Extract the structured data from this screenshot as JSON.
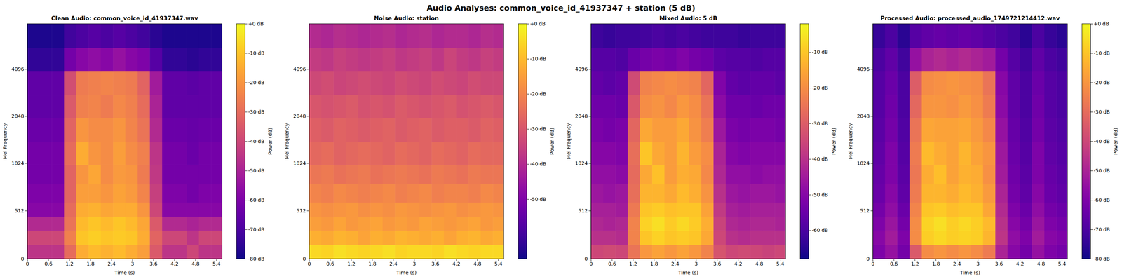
{
  "title": "Audio Analyses: common_voice_id_41937347 + station (5 dB)",
  "chart_data": [
    {
      "type": "heatmap",
      "title": "Clean Audio: common_voice_id_41937347.wav",
      "x_label": "Time (s)",
      "y_label": "Mel Frequency",
      "log": "y",
      "color": "plasma",
      "xlim": [
        0,
        5.56
      ],
      "xticks": [
        0,
        0.6,
        1.2,
        1.8,
        2.4,
        3,
        3.6,
        4.2,
        4.8,
        5.4
      ],
      "ylim": [
        0,
        8000
      ],
      "yticks": [
        0,
        512,
        1024,
        2048,
        4096
      ],
      "x_bins": [
        0,
        0.35,
        0.7,
        1.05,
        1.4,
        1.75,
        2.1,
        2.45,
        2.8,
        3.15,
        3.5,
        3.85,
        4.2,
        4.55,
        4.9,
        5.25,
        5.56
      ],
      "y_bins": [
        0,
        150,
        300,
        450,
        600,
        800,
        1000,
        1400,
        2000,
        2800,
        4000,
        5600,
        8000
      ],
      "values": [
        [
          -45,
          -45,
          -45,
          -30,
          -15,
          -12,
          -14,
          -12,
          -15,
          -18,
          -35,
          -45,
          -45,
          -40,
          -45,
          -45
        ],
        [
          -40,
          -40,
          -40,
          -25,
          -10,
          -8,
          -10,
          -9,
          -10,
          -15,
          -32,
          -40,
          -40,
          -45,
          -40,
          -40
        ],
        [
          -48,
          -48,
          -48,
          -28,
          -12,
          -10,
          -12,
          -10,
          -12,
          -16,
          -35,
          -48,
          -48,
          -50,
          -48,
          -48
        ],
        [
          -58,
          -58,
          -58,
          -30,
          -15,
          -14,
          -16,
          -15,
          -15,
          -20,
          -40,
          -58,
          -58,
          -58,
          -58,
          -58
        ],
        [
          -60,
          -60,
          -60,
          -32,
          -18,
          -18,
          -20,
          -17,
          -19,
          -24,
          -42,
          -60,
          -60,
          -62,
          -60,
          -60
        ],
        [
          -62,
          -62,
          -62,
          -32,
          -20,
          -16,
          -22,
          -19,
          -20,
          -26,
          -44,
          -62,
          -62,
          -62,
          -62,
          -62
        ],
        [
          -62,
          -62,
          -62,
          -30,
          -15,
          -20,
          -22,
          -18,
          -22,
          -25,
          -45,
          -62,
          -62,
          -64,
          -62,
          -62
        ],
        [
          -64,
          -64,
          -64,
          -32,
          -20,
          -22,
          -22,
          -20,
          -24,
          -28,
          -48,
          -64,
          -64,
          -65,
          -64,
          -64
        ],
        [
          -66,
          -66,
          -66,
          -35,
          -25,
          -24,
          -26,
          -23,
          -25,
          -30,
          -50,
          -66,
          -66,
          -66,
          -66,
          -66
        ],
        [
          -66,
          -66,
          -66,
          -38,
          -26,
          -25,
          -24,
          -25,
          -26,
          -32,
          -52,
          -66,
          -66,
          -67,
          -66,
          -66
        ],
        [
          -75,
          -75,
          -75,
          -62,
          -58,
          -56,
          -58,
          -55,
          -58,
          -60,
          -68,
          -75,
          -75,
          -76,
          -75,
          -75
        ],
        [
          -78,
          -78,
          -78,
          -72,
          -70,
          -68,
          -70,
          -68,
          -70,
          -72,
          -76,
          -78,
          -78,
          -78,
          -78,
          -78
        ]
      ],
      "colorbar_label": "Power (dB)",
      "color_range": [
        -80,
        0
      ],
      "color_ticks": [
        {
          "value": 0,
          "label": "+0 dB"
        },
        {
          "value": -10,
          "label": "-10 dB"
        },
        {
          "value": -20,
          "label": "-20 dB"
        },
        {
          "value": -30,
          "label": "-30 dB"
        },
        {
          "value": -40,
          "label": "-40 dB"
        },
        {
          "value": -50,
          "label": "-50 dB"
        },
        {
          "value": -60,
          "label": "-60 dB"
        },
        {
          "value": -70,
          "label": "-70 dB"
        },
        {
          "value": -80,
          "label": "-80 dB"
        }
      ]
    },
    {
      "type": "heatmap",
      "title": "Noise Audio: station",
      "x_label": "Time (s)",
      "y_label": "Mel Frequency",
      "log": "y",
      "color": "plasma",
      "xlim": [
        0,
        5.56
      ],
      "xticks": [
        0,
        0.6,
        1.2,
        1.8,
        2.4,
        3,
        3.6,
        4.2,
        4.8,
        5.4
      ],
      "ylim": [
        0,
        8000
      ],
      "yticks": [
        0,
        512,
        1024,
        2048,
        4096
      ],
      "x_bins": [
        0,
        0.35,
        0.7,
        1.05,
        1.4,
        1.75,
        2.1,
        2.45,
        2.8,
        3.15,
        3.5,
        3.85,
        4.2,
        4.55,
        4.9,
        5.25,
        5.56
      ],
      "y_bins": [
        0,
        150,
        300,
        450,
        600,
        800,
        1000,
        1400,
        2000,
        2800,
        4000,
        5600,
        8000
      ],
      "values": [
        [
          -5,
          -6,
          -4,
          -5,
          -6,
          -5,
          -4,
          -6,
          -5,
          -5,
          -6,
          -4,
          -5,
          -6,
          -5,
          -5
        ],
        [
          -12,
          -13,
          -11,
          -12,
          -14,
          -12,
          -13,
          -11,
          -12,
          -13,
          -12,
          -14,
          -12,
          -11,
          -13,
          -12
        ],
        [
          -15,
          -16,
          -14,
          -16,
          -15,
          -14,
          -16,
          -15,
          -16,
          -14,
          -15,
          -16,
          -15,
          -14,
          -16,
          -15
        ],
        [
          -17,
          -18,
          -17,
          -16,
          -18,
          -17,
          -18,
          -16,
          -17,
          -18,
          -17,
          -16,
          -18,
          -17,
          -16,
          -17
        ],
        [
          -20,
          -21,
          -19,
          -20,
          -21,
          -20,
          -19,
          -21,
          -20,
          -19,
          -21,
          -20,
          -20,
          -21,
          -19,
          -20
        ],
        [
          -23,
          -22,
          -24,
          -23,
          -22,
          -24,
          -23,
          -22,
          -23,
          -24,
          -22,
          -23,
          -24,
          -22,
          -23,
          -23
        ],
        [
          -26,
          -25,
          -27,
          -26,
          -25,
          -26,
          -27,
          -25,
          -26,
          -27,
          -25,
          -26,
          -27,
          -25,
          -26,
          -26
        ],
        [
          -28,
          -29,
          -27,
          -28,
          -29,
          -28,
          -27,
          -29,
          -28,
          -27,
          -29,
          -28,
          -28,
          -29,
          -27,
          -28
        ],
        [
          -30,
          -31,
          -30,
          -29,
          -31,
          -30,
          -31,
          -29,
          -30,
          -31,
          -30,
          -29,
          -31,
          -30,
          -29,
          -30
        ],
        [
          -33,
          -32,
          -34,
          -33,
          -32,
          -33,
          -34,
          -32,
          -33,
          -34,
          -32,
          -33,
          -34,
          -32,
          -33,
          -33
        ],
        [
          -36,
          -37,
          -35,
          -36,
          -37,
          -36,
          -35,
          -37,
          -36,
          -35,
          -37,
          -34,
          -36,
          -37,
          -35,
          -36
        ],
        [
          -40,
          -41,
          -39,
          -40,
          -41,
          -40,
          -39,
          -41,
          -40,
          -39,
          -41,
          -40,
          -40,
          -41,
          -39,
          -40
        ]
      ],
      "colorbar_label": "Power (dB)",
      "color_range": [
        -67,
        0
      ],
      "color_ticks": [
        {
          "value": 0,
          "label": "+0 dB"
        },
        {
          "value": -10,
          "label": "-10 dB"
        },
        {
          "value": -20,
          "label": "-20 dB"
        },
        {
          "value": -30,
          "label": "-30 dB"
        },
        {
          "value": -40,
          "label": "-40 dB"
        },
        {
          "value": -50,
          "label": "-50 dB"
        }
      ]
    },
    {
      "type": "heatmap",
      "title": "Mixed Audio: 5 dB",
      "x_label": "Time (s)",
      "y_label": "Mel Frequency",
      "log": "y",
      "color": "plasma",
      "xlim": [
        0,
        5.56
      ],
      "xticks": [
        0,
        0.6,
        1.2,
        1.8,
        2.4,
        3,
        3.6,
        4.2,
        4.8,
        5.4
      ],
      "ylim": [
        0,
        8000
      ],
      "yticks": [
        0,
        512,
        1024,
        2048,
        4096
      ],
      "x_bins": [
        0,
        0.35,
        0.7,
        1.05,
        1.4,
        1.75,
        2.1,
        2.45,
        2.8,
        3.15,
        3.5,
        3.85,
        4.2,
        4.55,
        4.9,
        5.25,
        5.56
      ],
      "y_bins": [
        0,
        150,
        300,
        450,
        600,
        800,
        1000,
        1400,
        2000,
        2800,
        4000,
        5600,
        8000
      ],
      "values": [
        [
          -35,
          -34,
          -35,
          -25,
          -18,
          -16,
          -18,
          -16,
          -18,
          -22,
          -32,
          -35,
          -34,
          -35,
          -36,
          -35
        ],
        [
          -40,
          -40,
          -41,
          -22,
          -10,
          -8,
          -10,
          -9,
          -10,
          -15,
          -35,
          -40,
          -41,
          -40,
          -40,
          -40
        ],
        [
          -42,
          -43,
          -42,
          -22,
          -8,
          -6,
          -9,
          -7,
          -9,
          -14,
          -36,
          -42,
          -43,
          -42,
          -42,
          -43
        ],
        [
          -44,
          -44,
          -45,
          -24,
          -10,
          -9,
          -11,
          -10,
          -10,
          -16,
          -38,
          -44,
          -45,
          -44,
          -44,
          -44
        ],
        [
          -46,
          -47,
          -46,
          -26,
          -13,
          -13,
          -15,
          -12,
          -14,
          -19,
          -40,
          -46,
          -47,
          -46,
          -46,
          -47
        ],
        [
          -48,
          -48,
          -49,
          -27,
          -15,
          -11,
          -17,
          -14,
          -15,
          -21,
          -42,
          -48,
          -48,
          -49,
          -48,
          -48
        ],
        [
          -50,
          -50,
          -51,
          -26,
          -10,
          -15,
          -17,
          -13,
          -17,
          -20,
          -43,
          -50,
          -51,
          -50,
          -50,
          -50
        ],
        [
          -52,
          -53,
          -52,
          -28,
          -15,
          -17,
          -17,
          -15,
          -19,
          -23,
          -46,
          -52,
          -53,
          -52,
          -52,
          -53
        ],
        [
          -54,
          -54,
          -55,
          -31,
          -20,
          -19,
          -21,
          -18,
          -20,
          -25,
          -49,
          -54,
          -54,
          -55,
          -54,
          -54
        ],
        [
          -56,
          -57,
          -56,
          -34,
          -22,
          -21,
          -20,
          -21,
          -22,
          -28,
          -51,
          -56,
          -57,
          -56,
          -56,
          -57
        ],
        [
          -58,
          -58,
          -59,
          -55,
          -53,
          -52,
          -53,
          -51,
          -53,
          -54,
          -57,
          -58,
          -58,
          -59,
          -58,
          -58
        ],
        [
          -62,
          -63,
          -62,
          -62,
          -61,
          -60,
          -61,
          -60,
          -61,
          -62,
          -62,
          -62,
          -63,
          -62,
          -62,
          -62
        ]
      ],
      "colorbar_label": "Power (dB)",
      "color_range": [
        -68,
        -2
      ],
      "color_ticks": [
        {
          "value": -10,
          "label": "-10 dB"
        },
        {
          "value": -20,
          "label": "-20 dB"
        },
        {
          "value": -30,
          "label": "-30 dB"
        },
        {
          "value": -40,
          "label": "-40 dB"
        },
        {
          "value": -50,
          "label": "-50 dB"
        },
        {
          "value": -60,
          "label": "-60 dB"
        }
      ]
    },
    {
      "type": "heatmap",
      "title": "Processed Audio: processed_audio_1749721214412.wav",
      "x_label": "Time (s)",
      "y_label": "Mel Frequency",
      "log": "y",
      "color": "plasma",
      "xlim": [
        0,
        5.56
      ],
      "xticks": [
        0,
        0.6,
        1.2,
        1.8,
        2.4,
        3,
        3.6,
        4.2,
        4.8,
        5.4
      ],
      "ylim": [
        0,
        8000
      ],
      "yticks": [
        0,
        512,
        1024,
        2048,
        4096
      ],
      "x_bins": [
        0,
        0.35,
        0.7,
        1.05,
        1.4,
        1.75,
        2.1,
        2.45,
        2.8,
        3.15,
        3.5,
        3.85,
        4.2,
        4.55,
        4.9,
        5.25,
        5.56
      ],
      "y_bins": [
        0,
        150,
        300,
        450,
        600,
        800,
        1000,
        1400,
        2000,
        2800,
        4000,
        5600,
        8000
      ],
      "values": [
        [
          -60,
          -55,
          -62,
          -35,
          -22,
          -20,
          -22,
          -20,
          -22,
          -26,
          -50,
          -58,
          -62,
          -55,
          -60,
          -62
        ],
        [
          -58,
          -52,
          -60,
          -22,
          -8,
          -6,
          -8,
          -7,
          -8,
          -13,
          -45,
          -56,
          -60,
          -52,
          -58,
          -60
        ],
        [
          -60,
          -54,
          -62,
          -22,
          -7,
          -5,
          -8,
          -6,
          -8,
          -12,
          -46,
          -58,
          -62,
          -54,
          -60,
          -62
        ],
        [
          -62,
          -56,
          -64,
          -24,
          -10,
          -9,
          -11,
          -10,
          -10,
          -16,
          -48,
          -60,
          -64,
          -56,
          -62,
          -64
        ],
        [
          -64,
          -58,
          -66,
          -26,
          -13,
          -13,
          -15,
          -12,
          -14,
          -19,
          -50,
          -62,
          -66,
          -58,
          -64,
          -66
        ],
        [
          -65,
          -60,
          -67,
          -27,
          -15,
          -11,
          -17,
          -14,
          -15,
          -21,
          -52,
          -63,
          -67,
          -60,
          -65,
          -67
        ],
        [
          -66,
          -60,
          -68,
          -26,
          -12,
          -15,
          -17,
          -13,
          -17,
          -20,
          -53,
          -64,
          -68,
          -60,
          -66,
          -68
        ],
        [
          -67,
          -62,
          -69,
          -28,
          -16,
          -17,
          -17,
          -16,
          -19,
          -23,
          -55,
          -65,
          -69,
          -62,
          -67,
          -69
        ],
        [
          -68,
          -63,
          -70,
          -31,
          -20,
          -20,
          -21,
          -19,
          -21,
          -26,
          -57,
          -66,
          -70,
          -63,
          -68,
          -70
        ],
        [
          -68,
          -64,
          -70,
          -34,
          -22,
          -21,
          -20,
          -21,
          -22,
          -28,
          -58,
          -66,
          -70,
          -64,
          -68,
          -70
        ],
        [
          -70,
          -66,
          -72,
          -55,
          -50,
          -48,
          -50,
          -48,
          -50,
          -52,
          -62,
          -68,
          -72,
          -66,
          -70,
          -72
        ],
        [
          -74,
          -70,
          -76,
          -68,
          -66,
          -65,
          -66,
          -65,
          -66,
          -68,
          -70,
          -72,
          -76,
          -70,
          -74,
          -76
        ]
      ],
      "colorbar_label": "Power (dB)",
      "color_range": [
        -80,
        0
      ],
      "color_ticks": [
        {
          "value": 0,
          "label": "+0 dB"
        },
        {
          "value": -10,
          "label": "-10 dB"
        },
        {
          "value": -20,
          "label": "-20 dB"
        },
        {
          "value": -30,
          "label": "-30 dB"
        },
        {
          "value": -40,
          "label": "-40 dB"
        },
        {
          "value": -50,
          "label": "-50 dB"
        },
        {
          "value": -60,
          "label": "-60 dB"
        },
        {
          "value": -70,
          "label": "-70 dB"
        },
        {
          "value": -80,
          "label": "-80 dB"
        }
      ]
    }
  ]
}
